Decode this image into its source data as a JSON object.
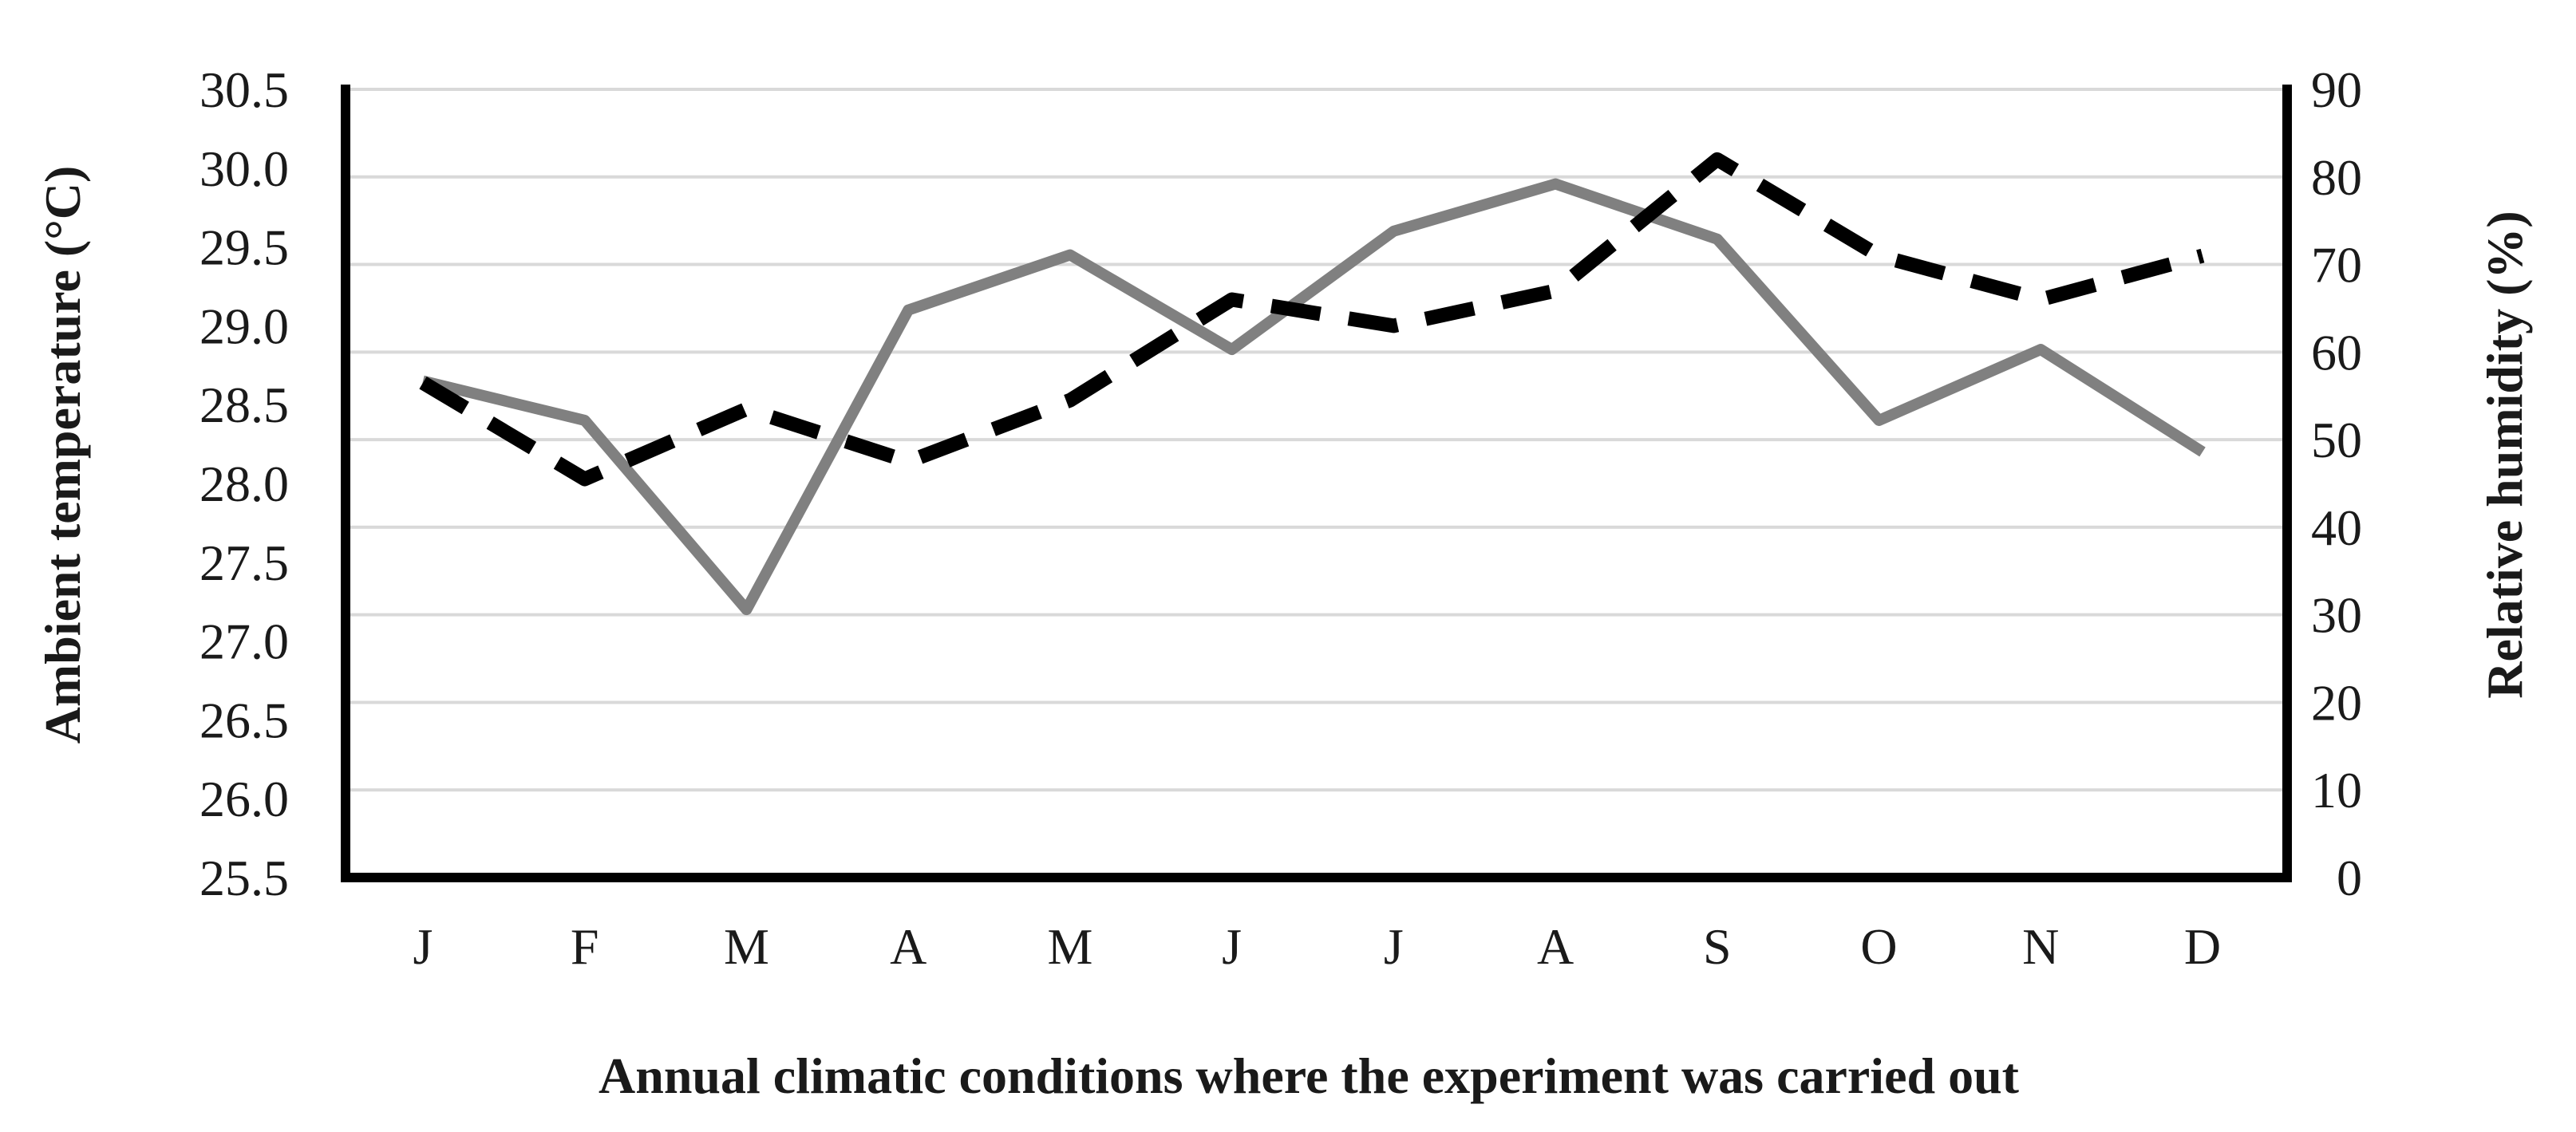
{
  "chart_data": {
    "type": "line",
    "title": "",
    "xlabel": "Annual climatic conditions where the experiment was carried out",
    "ylabel_left": "Ambient temperature (°C)",
    "ylabel_right": "Relative humidity (%)",
    "categories": [
      "J",
      "F",
      "M",
      "A",
      "M",
      "J",
      "J",
      "A",
      "S",
      "O",
      "N",
      "D"
    ],
    "y_left": {
      "min": 25.5,
      "max": 30.5,
      "step": 0.5,
      "ticks": [
        "25.5",
        "26.0",
        "26.5",
        "27.0",
        "27.5",
        "28.0",
        "28.5",
        "29.0",
        "29.5",
        "30.0",
        "30.5"
      ]
    },
    "y_right": {
      "min": 0,
      "max": 90,
      "step": 10,
      "ticks": [
        "0",
        "10",
        "20",
        "30",
        "40",
        "50",
        "60",
        "70",
        "80",
        "90"
      ]
    },
    "grid": true,
    "legend": "none",
    "series": [
      {
        "name": "Ambient temperature",
        "axis": "left",
        "style": "solid",
        "color": "#808080",
        "values": [
          28.65,
          28.4,
          27.2,
          29.1,
          29.45,
          28.85,
          29.6,
          29.9,
          29.55,
          28.4,
          28.85,
          28.2
        ]
      },
      {
        "name": "Relative humidity",
        "axis": "right",
        "style": "dashed",
        "color": "#000000",
        "values": [
          56.5,
          45.5,
          53.5,
          47.5,
          54.5,
          66,
          63,
          67,
          82,
          71,
          66,
          71
        ]
      }
    ]
  }
}
